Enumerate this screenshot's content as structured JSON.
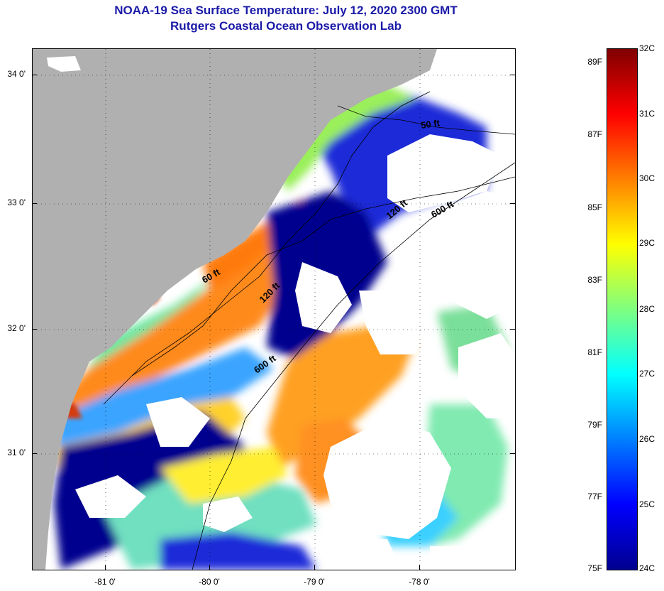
{
  "header": {
    "title": "NOAA-19 Sea Surface Temperature:  July 12, 2020 2300 GMT",
    "subtitle": "Rutgers Coastal Ocean Observation Lab"
  },
  "axes": {
    "lat_ticks": [
      "34 0'",
      "33 0'",
      "32 0'",
      "31 0'"
    ],
    "lon_ticks": [
      "-81 0'",
      "-80 0'",
      "-79 0'",
      "-78 0'"
    ]
  },
  "isobaths": [
    "50 ft",
    "120 ft",
    "600 ft",
    "60 ft",
    "120 ft",
    "600 ft"
  ],
  "colorbar": {
    "fahrenheit": [
      "89F",
      "87F",
      "85F",
      "83F",
      "81F",
      "79F",
      "77F",
      "75F"
    ],
    "celsius": [
      "32C",
      "31C",
      "30C",
      "29C",
      "28C",
      "27C",
      "26C",
      "25C",
      "24C"
    ]
  },
  "colors": {
    "title": "#1a1aa8",
    "land": "#b0b0b0",
    "cloud": "#ffffff",
    "coolest": "#00008f",
    "warmest": "#7f0000"
  },
  "chart_data": {
    "type": "heatmap",
    "title": "NOAA-19 Sea Surface Temperature:  July 12, 2020 2300 GMT",
    "subtitle": "Rutgers Coastal Ocean Observation Lab",
    "xlabel": "",
    "ylabel": "",
    "x_ticks": [
      "-81 0'",
      "-80 0'",
      "-79 0'",
      "-78 0'"
    ],
    "y_ticks": [
      "34 0'",
      "33 0'",
      "32 0'",
      "31 0'"
    ],
    "colorbar_range_C": [
      24,
      32
    ],
    "colorbar_range_F": [
      75,
      89
    ],
    "grid": true
  }
}
